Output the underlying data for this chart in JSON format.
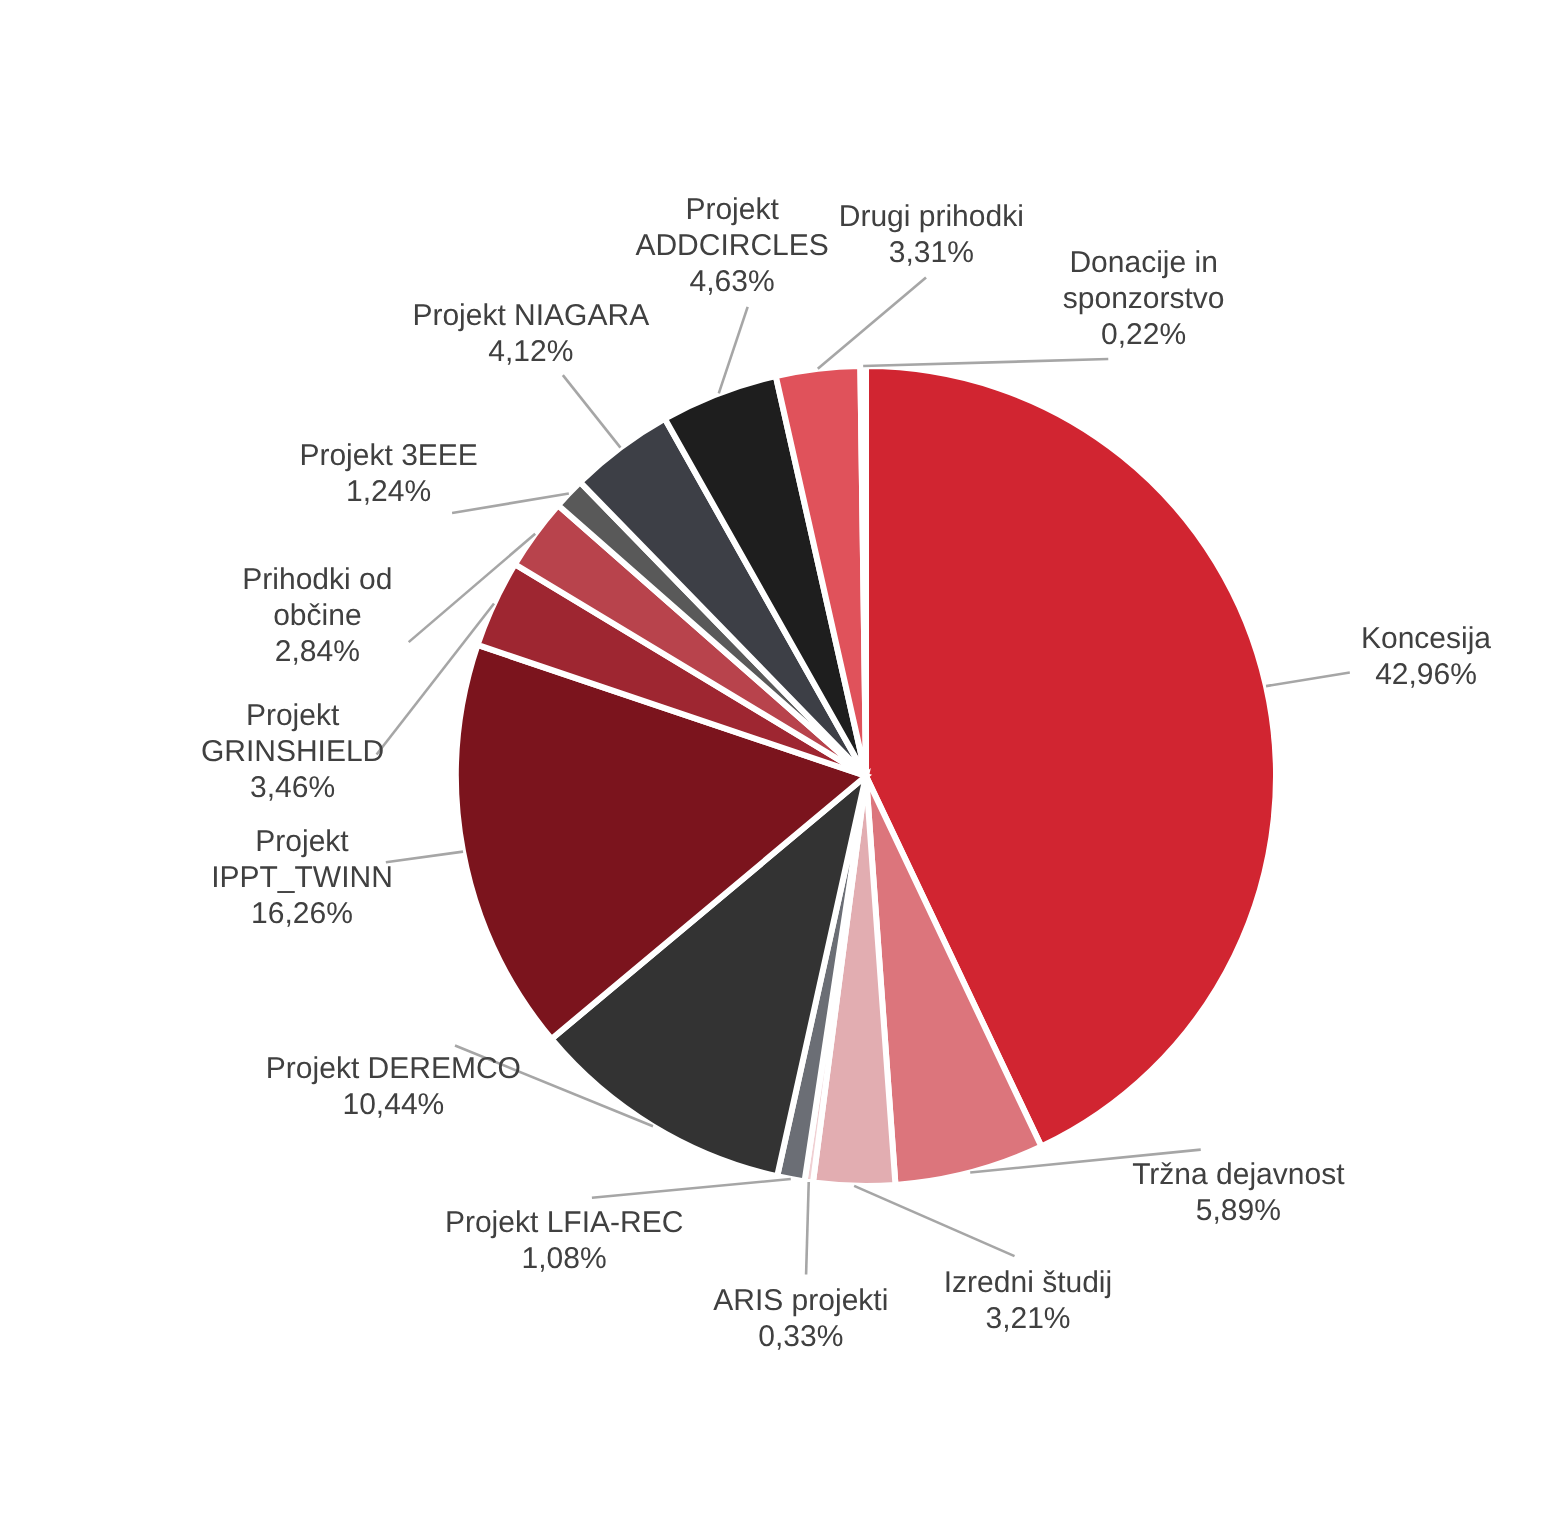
{
  "chart_data": {
    "type": "pie",
    "categories": [
      "Koncesija",
      "Tržna dejavnost",
      "Izredni študij",
      "ARIS  projekti",
      "Projekt LFIA-REC",
      "Projekt DEREMCO",
      "Projekt IPPT_TWINN",
      "Projekt GRINSHIELD",
      "Prihodki od občine",
      "Projekt 3EEE",
      "Projekt NIAGARA",
      "Projekt ADDCIRCLES",
      "Drugi prihodki",
      "Donacije in sponzorstvo"
    ],
    "values": [
      42.96,
      5.89,
      3.21,
      0.33,
      1.08,
      10.44,
      16.26,
      3.46,
      2.84,
      1.24,
      4.12,
      4.63,
      3.31,
      0.22
    ],
    "value_labels": [
      "42,96%",
      "5,89%",
      "3,21%",
      "0,33%",
      "1,08%",
      "10,44%",
      "16,26%",
      "3,46%",
      "2,84%",
      "1,24%",
      "4,12%",
      "4,63%",
      "3,31%",
      "0,22%"
    ],
    "colors": [
      "#d12531",
      "#dc757c",
      "#e2adb1",
      "#f0d0d3",
      "#6b6e75",
      "#333333",
      "#7b141d",
      "#9e2631",
      "#b8434c",
      "#595959",
      "#3d3f46",
      "#1e1e1e",
      "#e0525b",
      "#e8a0a5"
    ]
  }
}
